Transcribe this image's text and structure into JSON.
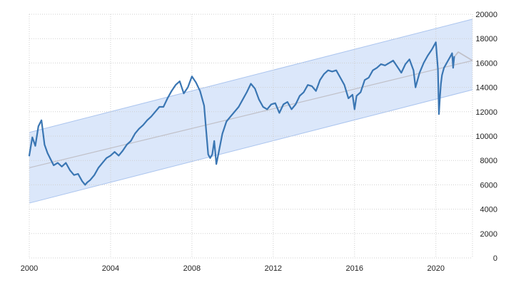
{
  "chart_data": {
    "type": "line",
    "title": "",
    "xlabel": "",
    "ylabel": "",
    "xlim": [
      2000,
      2021.8
    ],
    "ylim": [
      0,
      20000
    ],
    "x_ticks": [
      2000,
      2004,
      2008,
      2012,
      2016,
      2020
    ],
    "x_tick_labels": [
      "2000",
      "2004",
      "2008",
      "2012",
      "2016",
      "2020"
    ],
    "y_ticks": [
      0,
      2000,
      4000,
      6000,
      8000,
      10000,
      12000,
      14000,
      16000,
      18000,
      20000
    ],
    "y_tick_labels": [
      "0",
      "2000",
      "4000",
      "6000",
      "8000",
      "10000",
      "12000",
      "14000",
      "16000",
      "18000",
      "20000"
    ],
    "grid": true,
    "legend": "none",
    "series": [
      {
        "color": "#3a76b3",
        "x": [
          2000.0,
          2000.15,
          2000.3,
          2000.45,
          2000.6,
          2000.75,
          2000.9,
          2001.05,
          2001.2,
          2001.4,
          2001.6,
          2001.8,
          2002.0,
          2002.2,
          2002.4,
          2002.6,
          2002.75,
          2002.85,
          2003.0,
          2003.2,
          2003.4,
          2003.6,
          2003.8,
          2004.0,
          2004.2,
          2004.4,
          2004.6,
          2004.8,
          2005.0,
          2005.2,
          2005.4,
          2005.6,
          2005.8,
          2006.0,
          2006.2,
          2006.4,
          2006.6,
          2006.8,
          2007.0,
          2007.2,
          2007.4,
          2007.6,
          2007.8,
          2008.0,
          2008.2,
          2008.4,
          2008.6,
          2008.7,
          2008.8,
          2008.9,
          2009.0,
          2009.1,
          2009.2,
          2009.3,
          2009.5,
          2009.7,
          2009.9,
          2010.1,
          2010.3,
          2010.5,
          2010.7,
          2010.9,
          2011.1,
          2011.3,
          2011.5,
          2011.7,
          2011.9,
          2012.1,
          2012.3,
          2012.5,
          2012.7,
          2012.9,
          2013.1,
          2013.3,
          2013.5,
          2013.7,
          2013.9,
          2014.1,
          2014.3,
          2014.5,
          2014.7,
          2014.9,
          2015.1,
          2015.3,
          2015.5,
          2015.7,
          2015.9,
          2016.0,
          2016.1,
          2016.3,
          2016.5,
          2016.7,
          2016.9,
          2017.1,
          2017.3,
          2017.5,
          2017.7,
          2017.9,
          2018.1,
          2018.3,
          2018.5,
          2018.7,
          2018.9,
          2019.0,
          2019.2,
          2019.4,
          2019.6,
          2019.8,
          2020.0,
          2020.1,
          2020.15,
          2020.2,
          2020.25,
          2020.3,
          2020.4,
          2020.5,
          2020.6,
          2020.7,
          2020.8,
          2020.85,
          2020.9
        ],
        "values": [
          8400,
          9900,
          9200,
          10800,
          11300,
          9300,
          8600,
          8100,
          7600,
          7800,
          7500,
          7800,
          7200,
          6800,
          6900,
          6300,
          6000,
          6200,
          6400,
          6800,
          7400,
          7800,
          8200,
          8400,
          8700,
          8400,
          8800,
          9300,
          9600,
          10200,
          10600,
          10900,
          11300,
          11600,
          12000,
          12400,
          12400,
          13100,
          13700,
          14200,
          14500,
          13500,
          14000,
          14900,
          14400,
          13700,
          12500,
          10500,
          8500,
          8200,
          8500,
          9600,
          7700,
          8500,
          10200,
          11200,
          11600,
          12000,
          12400,
          13000,
          13600,
          14300,
          13900,
          13000,
          12400,
          12200,
          12600,
          12700,
          11900,
          12600,
          12800,
          12200,
          12600,
          13300,
          13600,
          14200,
          14100,
          13700,
          14600,
          15100,
          15400,
          15300,
          15400,
          14800,
          14200,
          13100,
          13400,
          12200,
          13300,
          13600,
          14600,
          14800,
          15400,
          15600,
          15900,
          15800,
          16000,
          16200,
          15700,
          15200,
          15900,
          16300,
          15400,
          14000,
          15200,
          16000,
          16600,
          17100,
          17700,
          15500,
          11800,
          13200,
          14300,
          15000,
          15600,
          15900,
          16200,
          16500,
          16800,
          15600,
          16500
        ]
      }
    ],
    "trend": {
      "color": "#c0c0c8",
      "x": [
        2000.0,
        2021.8
      ],
      "y": [
        7400,
        16200
      ]
    },
    "channel": {
      "color": "#dbe7fa",
      "edge_color": "#aac4ee",
      "x": [
        2000.0,
        2021.8
      ],
      "upper": [
        10300,
        19600
      ],
      "lower": [
        4500,
        13800
      ]
    },
    "forecast": {
      "color": "#c0c0c8",
      "x": [
        2020.9,
        2021.1,
        2021.4,
        2021.8
      ],
      "values": [
        16500,
        16900,
        16600,
        16200
      ]
    }
  }
}
